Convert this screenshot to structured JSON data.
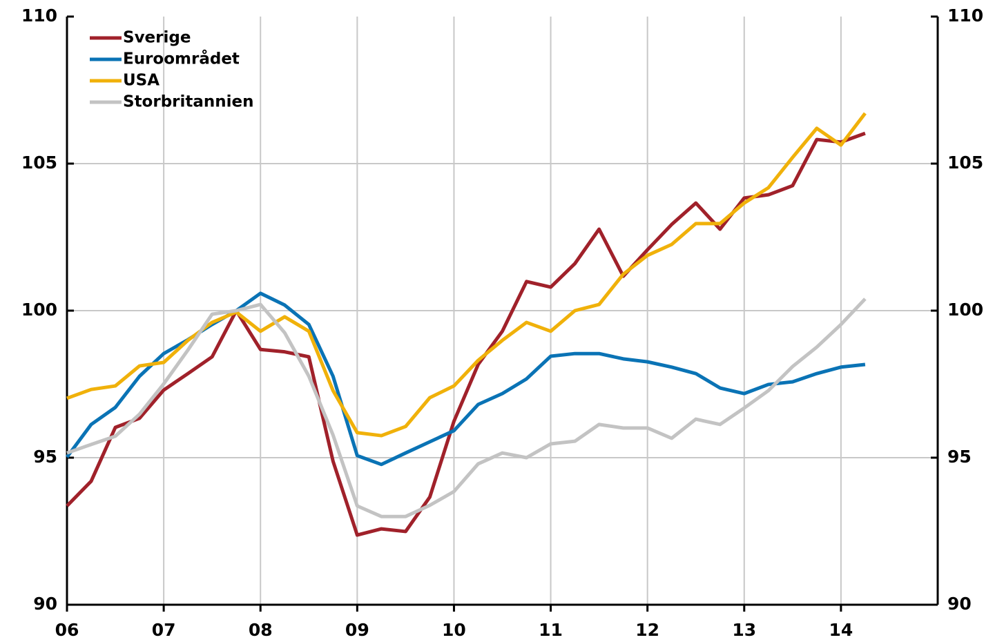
{
  "chart_data": {
    "type": "line",
    "x": [
      2006,
      2006.25,
      2006.5,
      2006.75,
      2007,
      2007.25,
      2007.5,
      2007.75,
      2008,
      2008.25,
      2008.5,
      2008.75,
      2009,
      2009.25,
      2009.5,
      2009.75,
      2010,
      2010.25,
      2010.5,
      2010.75,
      2011,
      2011.25,
      2011.5,
      2011.75,
      2012,
      2012.25,
      2012.5,
      2012.75,
      2013,
      2013.25,
      2013.5,
      2013.75,
      2014,
      2014.25
    ],
    "series": [
      {
        "name": "Sverige",
        "color": "#a0212a",
        "values": [
          93.36,
          94.2,
          96.03,
          96.34,
          97.3,
          97.86,
          98.43,
          100.0,
          98.68,
          98.6,
          98.43,
          94.88,
          92.37,
          92.58,
          92.49,
          93.66,
          96.24,
          98.17,
          99.3,
          100.99,
          100.8,
          101.6,
          102.77,
          101.17,
          102.07,
          102.93,
          103.66,
          102.77,
          103.83,
          103.94,
          104.25,
          105.82,
          105.73,
          106.03
        ]
      },
      {
        "name": "Euroområdet",
        "color": "#0a73b5",
        "values": [
          95.02,
          96.13,
          96.71,
          97.77,
          98.54,
          99.01,
          99.53,
          100.0,
          100.59,
          100.19,
          99.53,
          97.77,
          95.07,
          94.77,
          95.16,
          95.54,
          95.92,
          96.81,
          97.18,
          97.68,
          98.45,
          98.54,
          98.54,
          98.36,
          98.26,
          98.08,
          97.86,
          97.37,
          97.18,
          97.49,
          97.58,
          97.86,
          98.08,
          98.17
        ]
      },
      {
        "name": "USA",
        "color": "#f0b10a",
        "values": [
          97.02,
          97.32,
          97.44,
          98.12,
          98.24,
          98.99,
          99.6,
          99.95,
          99.3,
          99.79,
          99.3,
          97.28,
          95.85,
          95.75,
          96.06,
          97.04,
          97.44,
          98.31,
          98.99,
          99.6,
          99.3,
          100.0,
          100.21,
          101.24,
          101.88,
          102.25,
          102.96,
          102.96,
          103.66,
          104.18,
          105.21,
          106.2,
          105.63,
          106.71
        ]
      },
      {
        "name": "Storbritannien",
        "color": "#c3c3c3",
        "values": [
          95.16,
          95.45,
          95.73,
          96.48,
          97.51,
          98.66,
          99.88,
          100.0,
          100.21,
          99.25,
          97.77,
          95.77,
          93.36,
          93.0,
          93.0,
          93.38,
          93.85,
          94.79,
          95.16,
          95.0,
          95.47,
          95.56,
          96.13,
          96.01,
          96.01,
          95.66,
          96.31,
          96.13,
          96.69,
          97.28,
          98.1,
          98.76,
          99.53,
          100.4
        ]
      }
    ],
    "xlim": [
      2006,
      2015
    ],
    "xticks": [
      {
        "value": 2006,
        "label": "06"
      },
      {
        "value": 2007,
        "label": "07"
      },
      {
        "value": 2008,
        "label": "08"
      },
      {
        "value": 2009,
        "label": "09"
      },
      {
        "value": 2010,
        "label": "10"
      },
      {
        "value": 2011,
        "label": "11"
      },
      {
        "value": 2012,
        "label": "12"
      },
      {
        "value": 2013,
        "label": "13"
      },
      {
        "value": 2014,
        "label": "14"
      }
    ],
    "ylim": [
      90,
      110
    ],
    "yticks": [
      90,
      95,
      100,
      105,
      110
    ],
    "y2lim": [
      90,
      110
    ],
    "y2ticks": [
      90,
      95,
      100,
      105,
      110
    ],
    "grid": true,
    "legend": "upper-left"
  }
}
